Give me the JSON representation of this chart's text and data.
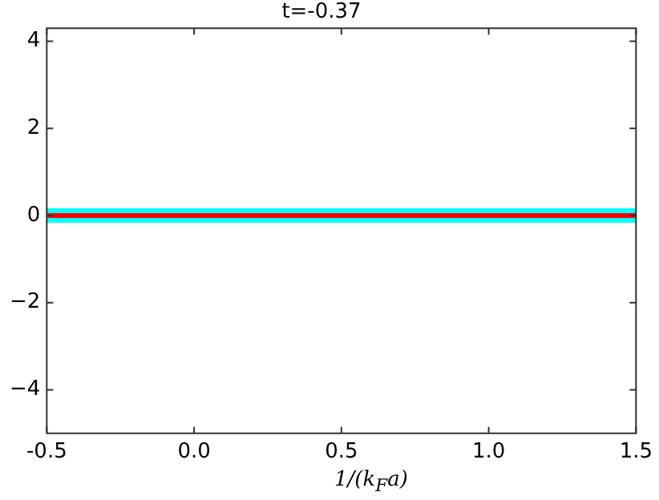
{
  "chart_data": {
    "type": "line",
    "title": "t=-0.37",
    "xlabel": "1/(k$_{F}$a)",
    "x": [
      -0.5,
      1.5
    ],
    "series": [
      {
        "color": "#00ffff",
        "values": [
          0,
          0
        ]
      },
      {
        "color": "#ff0000",
        "values": [
          0,
          0
        ]
      }
    ],
    "xlim": [
      -0.5,
      1.5
    ],
    "xticks": [
      {
        "value": -0.5,
        "label": "-0.5"
      },
      {
        "value": 0,
        "label": "0.0"
      },
      {
        "value": 0.5,
        "label": "0.5"
      },
      {
        "value": 1,
        "label": "1.0"
      },
      {
        "value": 1.5,
        "label": "1.5"
      }
    ],
    "ylim": [
      -5,
      4.3
    ],
    "yticks": [
      {
        "value": -4,
        "label": "−4"
      },
      {
        "value": -2,
        "label": "−2"
      },
      0,
      2,
      4
    ],
    "grid": false,
    "legend": false,
    "marker": "none",
    "line_style": "solid"
  }
}
